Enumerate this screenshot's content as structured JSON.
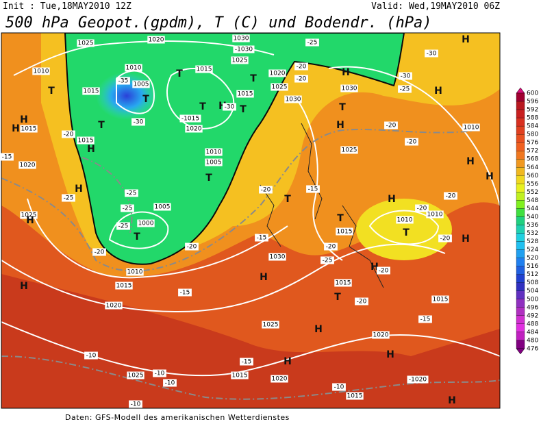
{
  "header": {
    "init": "Init : Tue,18MAY2010 12Z",
    "valid": "Valid: Wed,19MAY2010 06Z",
    "title": "500 hPa Geopot.(gpdm), T (C) und Bodendr. (hPa)"
  },
  "footer": "Daten: GFS-Modell des amerikanischen Wetterdienstes",
  "colorbar": {
    "levels": [
      600,
      596,
      592,
      588,
      584,
      580,
      576,
      572,
      568,
      564,
      560,
      556,
      552,
      548,
      544,
      540,
      536,
      532,
      528,
      524,
      520,
      516,
      512,
      508,
      504,
      500,
      496,
      492,
      488,
      484,
      480,
      476
    ]
  },
  "map_labels": [
    "1025",
    "1020",
    "1030",
    "-1030",
    "-25",
    "-30",
    "H",
    "1010",
    "T",
    "1015",
    "1010",
    "1005",
    "-35",
    "T",
    "T",
    "1015",
    "1025",
    "T",
    "1020",
    "1025",
    "-20",
    "-20",
    "H",
    "1030",
    "-30",
    "-25",
    "H",
    "1015",
    "H",
    "T",
    "T",
    "-30",
    "1030",
    "-30",
    "-1015",
    "1020",
    "T",
    "H",
    "H",
    "1015",
    "-20",
    "1015",
    "H",
    "-15",
    "1020",
    "T",
    "H",
    "-20",
    "1010",
    "1010",
    "1005",
    "T",
    "1025",
    "-20",
    "H",
    "H",
    "-20",
    "-15",
    "T",
    "H",
    "-25",
    "-25",
    "H",
    "-20",
    "1025",
    "H",
    "-25",
    "1005",
    "1000",
    "-25",
    "T",
    "-20",
    "1010",
    "1010",
    "T",
    "T",
    "1015",
    "-15",
    "-20",
    "-20",
    "-20",
    "H",
    "-20",
    "1030",
    "-25",
    "H",
    "-20",
    "1010",
    "H",
    "H",
    "1015",
    "1015",
    "T",
    "-20",
    "1015",
    "-15",
    "1020",
    "1025",
    "H",
    "-15",
    "1020",
    "H",
    "-10",
    "-15",
    "H",
    "1015",
    "1020",
    "-1020",
    "1025",
    "-10",
    "-10",
    "-10",
    "1015",
    "-10",
    "H"
  ]
}
